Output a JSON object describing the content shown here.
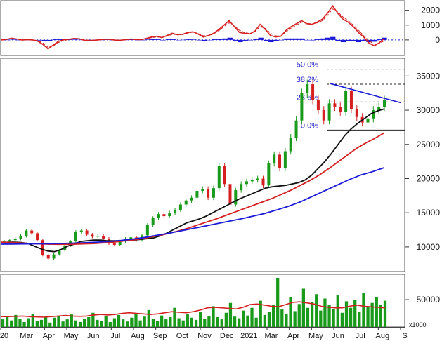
{
  "chart_data": [
    {
      "type": "line",
      "panel": "macd",
      "ylim": [
        -1000,
        2600
      ],
      "yticks": [
        2000,
        1000,
        0
      ],
      "zero_line": true,
      "series": [
        {
          "values": [
            0,
            40,
            120,
            60,
            -10,
            20,
            0,
            -80,
            -300,
            -600,
            -350,
            -100,
            10,
            40,
            100,
            80,
            -20,
            -60,
            -20,
            10,
            50,
            40,
            -20,
            -20,
            20,
            60,
            30,
            20,
            100,
            200,
            250,
            150,
            300,
            450,
            350,
            380,
            500,
            550,
            400,
            200,
            300,
            450,
            700,
            1000,
            1300,
            900,
            500,
            450,
            400,
            600,
            1050,
            700,
            300,
            200,
            250,
            650,
            900,
            1100,
            1300,
            1100,
            1050,
            1200,
            1400,
            1800,
            2300,
            1800,
            1400,
            1200,
            900,
            500,
            200,
            -200,
            -400,
            -200,
            100
          ],
          "color": "#d42020"
        },
        {
          "values": [
            0,
            30,
            90,
            60,
            10,
            15,
            5,
            -40,
            -200,
            -500,
            -400,
            -180,
            -40,
            20,
            70,
            70,
            20,
            -20,
            -20,
            0,
            30,
            30,
            0,
            -10,
            10,
            40,
            30,
            25,
            70,
            150,
            200,
            180,
            250,
            380,
            360,
            370,
            460,
            520,
            430,
            280,
            300,
            400,
            620,
            900,
            1150,
            950,
            650,
            500,
            430,
            550,
            900,
            780,
            450,
            280,
            260,
            550,
            800,
            1000,
            1200,
            1120,
            1080,
            1150,
            1300,
            1650,
            2100,
            1900,
            1550,
            1300,
            1000,
            650,
            300,
            -50,
            -280,
            -250,
            -50
          ],
          "color": "#d42020",
          "dashed": true
        }
      ],
      "histogram": {
        "values": [
          0,
          10,
          30,
          0,
          -20,
          5,
          -5,
          -40,
          -100,
          -100,
          50,
          80,
          50,
          20,
          30,
          10,
          -40,
          -40,
          0,
          10,
          20,
          10,
          -20,
          -10,
          10,
          20,
          0,
          -5,
          30,
          50,
          50,
          -30,
          50,
          70,
          -10,
          10,
          40,
          30,
          -30,
          -80,
          0,
          50,
          80,
          100,
          150,
          -50,
          -150,
          -50,
          -30,
          50,
          150,
          -80,
          -150,
          -80,
          -10,
          100,
          100,
          100,
          100,
          -20,
          -30,
          50,
          100,
          150,
          200,
          -100,
          -150,
          -100,
          -100,
          -150,
          -100,
          -150,
          -120,
          50,
          150
        ],
        "color": "#1a1ad8"
      }
    },
    {
      "type": "line",
      "panel": "price",
      "ylim": [
        6500,
        37500
      ],
      "yticks": [
        35000,
        30000,
        25000,
        20000,
        15000,
        10000
      ],
      "x_labels": [
        "20",
        "Mar",
        "Apr",
        "May",
        "Jun",
        "Jul",
        "Aug",
        "Sep",
        "Oct",
        "Nov",
        "Dec",
        "2021",
        "Mar",
        "Apr",
        "May",
        "Jun",
        "Jul",
        "Aug",
        "S"
      ],
      "fibonacci": [
        {
          "label": "50.0%",
          "value": 36000
        },
        {
          "label": "38.2%",
          "value": 33800
        },
        {
          "label": "23.6%",
          "value": 31200
        },
        {
          "label": "0.0%",
          "value": 27100
        }
      ],
      "trendline": {
        "from": 33900,
        "to": 31100,
        "color": "#1a1ad8"
      },
      "candles": {
        "close": [
          10800,
          11000,
          11200,
          11600,
          12400,
          12000,
          11000,
          8800,
          8300,
          8900,
          9500,
          10200,
          10800,
          12200,
          12400,
          11800,
          11500,
          11600,
          11200,
          10500,
          10300,
          10800,
          11200,
          11400,
          11000,
          11700,
          13200,
          14200,
          14800,
          14500,
          15000,
          15400,
          16200,
          16800,
          17200,
          18200,
          18500,
          17200,
          18600,
          21800,
          19200,
          16200,
          18300,
          19200,
          19600,
          19800,
          20000,
          19000,
          22200,
          23500,
          21500,
          24000,
          26000,
          28500,
          32500,
          33800,
          31500,
          30000,
          28500,
          31000,
          30500,
          29800,
          32800,
          30200,
          29000,
          28200,
          28800,
          30000,
          30500,
          31500
        ],
        "color": "#1a9a1a",
        "down_color": "#d42020"
      },
      "series": [
        {
          "values": [
            10600,
            10700,
            10700,
            10650,
            10500,
            10100,
            9700,
            9400,
            9300,
            9600,
            10100,
            10400,
            10800,
            10900,
            11000,
            11000,
            10900,
            10900,
            10900,
            10900,
            11000,
            11100,
            11200,
            11300,
            11600,
            12000,
            12500,
            13000,
            13500,
            13800,
            14100,
            14500,
            15000,
            15500,
            16000,
            16500,
            17000,
            17400,
            17800,
            18200,
            18600,
            18800,
            18900,
            19000,
            19200,
            19400,
            19800,
            20500,
            21500,
            22500,
            23700,
            25000,
            26300,
            27300,
            28100,
            28800,
            29500,
            29900,
            30200
          ],
          "color": "#111111"
        },
        {
          "values": [
            10700,
            10650,
            10600,
            10500,
            10450,
            10400,
            10380,
            10380,
            10400,
            10450,
            10500,
            10600,
            10700,
            10850,
            11000,
            11200,
            11450,
            11700,
            12000,
            12350,
            12750,
            13200,
            13650,
            14100,
            14600,
            15100,
            15600,
            16100,
            16600,
            17100,
            17700,
            18300,
            19000,
            19700,
            20500,
            21400,
            22400,
            23400,
            24400,
            25200,
            25900,
            26700
          ],
          "color": "#d42020"
        },
        {
          "values": [
            10400,
            10420,
            10440,
            10450,
            10470,
            10500,
            10550,
            10620,
            10700,
            10800,
            10950,
            11150,
            11400,
            11700,
            12000,
            12350,
            12700,
            13050,
            13400,
            13750,
            14100,
            14500,
            14900,
            15400,
            15950,
            16600,
            17400,
            18200,
            19000,
            19800,
            20500,
            21000,
            21600
          ],
          "color": "#1a1ad8"
        }
      ]
    },
    {
      "type": "bar",
      "panel": "volume",
      "ylim": [
        0,
        95000
      ],
      "yticks": [
        50000
      ],
      "unit_label": "x1000",
      "values": [
        14000,
        18000,
        12000,
        22000,
        15000,
        9000,
        16000,
        24000,
        11000,
        13000,
        19000,
        8000,
        17000,
        21000,
        10000,
        14000,
        23000,
        12000,
        9000,
        15000,
        18000,
        26000,
        13000,
        11000,
        20000,
        9000,
        16000,
        22000,
        14000,
        10000,
        17000,
        25000,
        12000,
        19000,
        31000,
        15000,
        11000,
        21000,
        14000,
        18000,
        35000,
        16000,
        12000,
        23000,
        17000,
        13000,
        28000,
        15000,
        20000,
        38000,
        18000,
        14000,
        26000,
        44000,
        19000,
        16000,
        30000,
        21000,
        35000,
        17000,
        48000,
        22000,
        27000,
        40000,
        90000,
        32000,
        24000,
        55000,
        29000,
        42000,
        70000,
        35000,
        46000,
        60000,
        30000,
        52000,
        41000,
        33000,
        58000,
        26000,
        47000,
        35000,
        50000,
        28000,
        62000,
        38000,
        44000,
        55000,
        40000,
        48000
      ],
      "ma": [
        19000,
        19000,
        19500,
        20000,
        19000,
        18500,
        18000,
        19000,
        20000,
        21000,
        20000,
        19500,
        20000,
        22000,
        23000,
        22000,
        23000,
        25000,
        26000,
        25000,
        24000,
        23000,
        24000,
        26000,
        28000,
        27000,
        26000,
        28000,
        31000,
        35000,
        36000,
        35000,
        34000,
        33000,
        36000,
        41000,
        42000,
        40000,
        38000,
        37000,
        41000,
        45000,
        46000,
        44000,
        42000,
        38000,
        36000,
        35000,
        35000,
        38000,
        40000,
        38000,
        37000,
        36000,
        35000
      ],
      "color": "#1a9a1a",
      "ma_color": "#d42020"
    }
  ]
}
